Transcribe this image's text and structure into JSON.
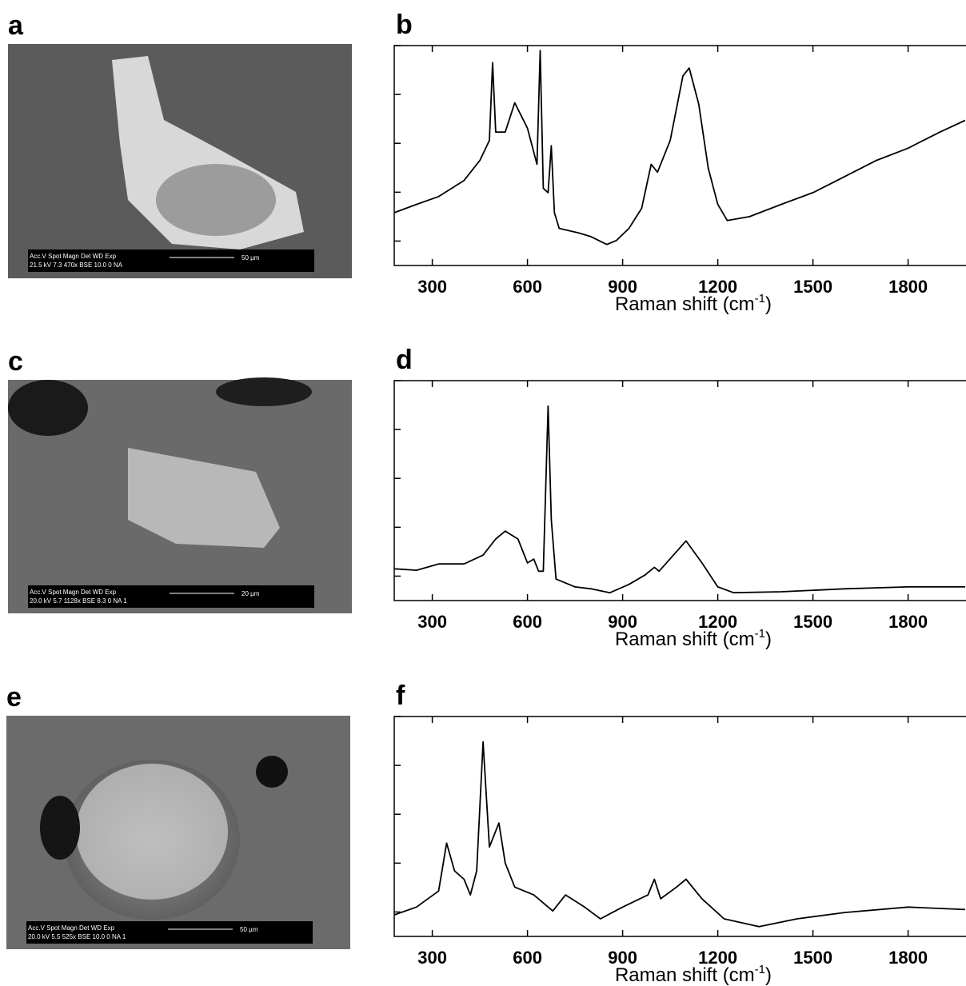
{
  "images": [
    {
      "label": "a",
      "info_header": "Acc.V   Spot Magn    Det  WD  Exp",
      "info_values": "21.5 kV 7.3   470x     BSE 10.0  0      NA",
      "scale": "50 µm"
    },
    {
      "label": "c",
      "info_header": "Acc.V   Spot Magn    Det  WD  Exp",
      "info_values": "20.0 kV 5.7   1128x   BSE 8.3   0      NA 1",
      "scale": "20 µm"
    },
    {
      "label": "e",
      "info_header": "Acc.V   Spot Magn    Det  WD  Exp",
      "info_values": "20.0 kV 5.5   525x     BSE 10.0  0      NA 1",
      "scale": "50 µm"
    }
  ],
  "chart_data": [
    {
      "type": "line",
      "title": "b",
      "x_label": "Raman shift (cm",
      "x_label_sup": "-1",
      "x_label_end": ")",
      "color": "#000000",
      "xlim": [
        180,
        1980
      ],
      "xticks": [
        300,
        600,
        900,
        1200,
        1500,
        1800
      ],
      "ylim": [
        0,
        4.5
      ],
      "yticks": [
        0.5,
        1.5,
        2.5,
        3.5,
        4.5
      ],
      "x": [
        180,
        250,
        320,
        400,
        450,
        480,
        490,
        500,
        530,
        560,
        600,
        630,
        640,
        650,
        665,
        675,
        685,
        700,
        760,
        800,
        850,
        880,
        920,
        960,
        990,
        1010,
        1050,
        1090,
        1110,
        1140,
        1170,
        1200,
        1230,
        1300,
        1400,
        1500,
        1600,
        1700,
        1800,
        1900,
        1980
      ],
      "values": [
        1.08,
        1.25,
        1.41,
        1.74,
        2.15,
        2.56,
        4.15,
        2.73,
        2.73,
        3.33,
        2.81,
        2.07,
        4.4,
        1.58,
        1.49,
        2.45,
        1.08,
        0.76,
        0.67,
        0.59,
        0.43,
        0.51,
        0.76,
        1.17,
        2.07,
        1.91,
        2.56,
        3.88,
        4.04,
        3.3,
        1.99,
        1.25,
        0.92,
        1.0,
        1.25,
        1.49,
        1.82,
        2.15,
        2.4,
        2.73,
        2.97
      ]
    },
    {
      "type": "line",
      "title": "d",
      "x_label": "Raman shift (cm",
      "x_label_sup": "-1",
      "x_label_end": ")",
      "color": "#000000",
      "xlim": [
        180,
        1980
      ],
      "xticks": [
        300,
        600,
        900,
        1200,
        1500,
        1800
      ],
      "ylim": [
        0,
        4.5
      ],
      "yticks": [
        0.5,
        1.5,
        2.5,
        3.5,
        4.5
      ],
      "x": [
        180,
        250,
        320,
        400,
        460,
        500,
        530,
        570,
        600,
        620,
        635,
        650,
        665,
        675,
        690,
        750,
        800,
        860,
        920,
        970,
        1000,
        1015,
        1060,
        1100,
        1150,
        1200,
        1250,
        1400,
        1600,
        1800,
        1980
      ],
      "values": [
        0.65,
        0.62,
        0.75,
        0.75,
        0.93,
        1.26,
        1.42,
        1.26,
        0.77,
        0.85,
        0.6,
        0.6,
        3.98,
        1.66,
        0.44,
        0.28,
        0.24,
        0.16,
        0.33,
        0.52,
        0.68,
        0.6,
        0.93,
        1.22,
        0.77,
        0.28,
        0.16,
        0.18,
        0.24,
        0.28,
        0.28
      ]
    },
    {
      "type": "line",
      "title": "f",
      "x_label": "Raman shift (cm",
      "x_label_sup": "-1",
      "x_label_end": ")",
      "color": "#000000",
      "xlim": [
        180,
        1980
      ],
      "xticks": [
        300,
        600,
        900,
        1200,
        1500,
        1800
      ],
      "ylim": [
        0,
        4.5
      ],
      "yticks": [
        0.5,
        1.5,
        2.5,
        3.5,
        4.5
      ],
      "x": [
        180,
        250,
        320,
        345,
        370,
        400,
        420,
        440,
        460,
        480,
        510,
        530,
        560,
        620,
        680,
        720,
        780,
        830,
        900,
        980,
        1000,
        1020,
        1070,
        1100,
        1150,
        1220,
        1330,
        1450,
        1600,
        1800,
        1980
      ],
      "values": [
        0.44,
        0.6,
        0.93,
        1.91,
        1.34,
        1.17,
        0.85,
        1.34,
        3.98,
        1.83,
        2.32,
        1.5,
        1.01,
        0.85,
        0.52,
        0.85,
        0.6,
        0.36,
        0.6,
        0.85,
        1.17,
        0.77,
        1.01,
        1.17,
        0.77,
        0.36,
        0.2,
        0.36,
        0.49,
        0.6,
        0.55
      ]
    }
  ]
}
